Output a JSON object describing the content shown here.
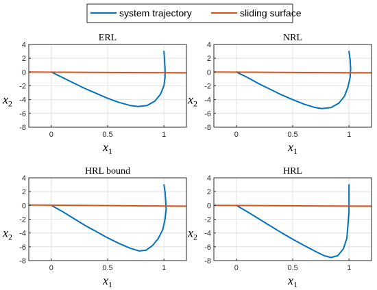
{
  "legend": {
    "placement": "top-center",
    "entries": [
      {
        "label": "system trajectory",
        "color": "#0072BD"
      },
      {
        "label": "sliding surface",
        "color": "#D95319"
      }
    ]
  },
  "chart_data": [
    {
      "type": "line",
      "title": "ERL",
      "xlabel": "x",
      "xlabel_sub": "1",
      "ylabel": "x",
      "ylabel_sub": "2",
      "xlim": [
        -0.2,
        1.2
      ],
      "ylim": [
        -8,
        4
      ],
      "xticks": [
        0,
        0.5,
        1
      ],
      "yticks": [
        -8,
        -6,
        -4,
        -2,
        0,
        2,
        4
      ],
      "xtick_labels": [
        "0",
        "0.5",
        "1"
      ],
      "ytick_labels": [
        "-8",
        "-6",
        "-4",
        "-2",
        "0",
        "2",
        "4"
      ],
      "grid": true,
      "series": [
        {
          "name": "system trajectory",
          "color": "#0072BD",
          "x": [
            0,
            0.1,
            0.2,
            0.3,
            0.4,
            0.5,
            0.6,
            0.7,
            0.77,
            0.85,
            0.92,
            0.97,
            1.0,
            1.01,
            1.01,
            1.005,
            1.0
          ],
          "y": [
            0,
            -0.8,
            -1.6,
            -2.4,
            -3.1,
            -3.8,
            -4.4,
            -4.85,
            -5.0,
            -4.85,
            -4.2,
            -3.2,
            -2.0,
            -0.8,
            0.5,
            1.8,
            3.0
          ]
        },
        {
          "name": "sliding surface",
          "color": "#D95319",
          "x": [
            -0.2,
            1.2
          ],
          "y": [
            0.0,
            -0.12
          ]
        }
      ]
    },
    {
      "type": "line",
      "title": "NRL",
      "xlabel": "x",
      "xlabel_sub": "1",
      "ylabel": "x",
      "ylabel_sub": "2",
      "xlim": [
        -0.2,
        1.2
      ],
      "ylim": [
        -8,
        4
      ],
      "xticks": [
        0,
        0.5,
        1
      ],
      "yticks": [
        -8,
        -6,
        -4,
        -2,
        0,
        2,
        4
      ],
      "xtick_labels": [
        "0",
        "0.5",
        "1"
      ],
      "ytick_labels": [
        "-8",
        "-6",
        "-4",
        "-2",
        "0",
        "2",
        "4"
      ],
      "grid": true,
      "series": [
        {
          "name": "system trajectory",
          "color": "#0072BD",
          "x": [
            0,
            0.1,
            0.2,
            0.3,
            0.4,
            0.5,
            0.6,
            0.7,
            0.76,
            0.84,
            0.91,
            0.96,
            0.99,
            1.01,
            1.015,
            1.01,
            1.0
          ],
          "y": [
            0,
            -0.8,
            -1.7,
            -2.5,
            -3.3,
            -4.0,
            -4.65,
            -5.15,
            -5.3,
            -5.15,
            -4.5,
            -3.5,
            -2.2,
            -0.8,
            0.5,
            1.8,
            3.0
          ]
        },
        {
          "name": "sliding surface",
          "color": "#D95319",
          "x": [
            -0.2,
            1.2
          ],
          "y": [
            0.0,
            -0.12
          ]
        }
      ]
    },
    {
      "type": "line",
      "title": "HRL bound",
      "xlabel": "x",
      "xlabel_sub": "1",
      "ylabel": "x",
      "ylabel_sub": "2",
      "xlim": [
        -0.2,
        1.2
      ],
      "ylim": [
        -8,
        4
      ],
      "xticks": [
        0,
        0.5,
        1
      ],
      "yticks": [
        -8,
        -6,
        -4,
        -2,
        0,
        2,
        4
      ],
      "xtick_labels": [
        "0",
        "0.5",
        "1"
      ],
      "ytick_labels": [
        "-8",
        "-6",
        "-4",
        "-2",
        "0",
        "2",
        "4"
      ],
      "grid": true,
      "series": [
        {
          "name": "system trajectory",
          "color": "#0072BD",
          "x": [
            0,
            0.1,
            0.2,
            0.3,
            0.4,
            0.5,
            0.6,
            0.7,
            0.78,
            0.84,
            0.9,
            0.95,
            0.99,
            1.01,
            1.02,
            1.015,
            1.01,
            1.0
          ],
          "y": [
            0,
            -0.9,
            -1.9,
            -2.9,
            -3.8,
            -4.7,
            -5.5,
            -6.2,
            -6.6,
            -6.5,
            -5.8,
            -4.8,
            -3.5,
            -2.0,
            -0.5,
            0.8,
            2.0,
            3.0
          ]
        },
        {
          "name": "sliding surface",
          "color": "#D95319",
          "x": [
            -0.2,
            1.2
          ],
          "y": [
            0.05,
            -0.12
          ]
        }
      ]
    },
    {
      "type": "line",
      "title": "HRL",
      "xlabel": "x",
      "xlabel_sub": "1",
      "ylabel": "x",
      "ylabel_sub": "2",
      "xlim": [
        -0.2,
        1.2
      ],
      "ylim": [
        -8,
        4
      ],
      "xticks": [
        0,
        0.5,
        1
      ],
      "yticks": [
        -8,
        -6,
        -4,
        -2,
        0,
        2,
        4
      ],
      "xtick_labels": [
        "0",
        "0.5",
        "1"
      ],
      "ytick_labels": [
        "-8",
        "-6",
        "-4",
        "-2",
        "0",
        "2",
        "4"
      ],
      "grid": true,
      "series": [
        {
          "name": "system trajectory",
          "color": "#0072BD",
          "x": [
            0,
            0.1,
            0.2,
            0.3,
            0.4,
            0.5,
            0.6,
            0.7,
            0.78,
            0.84,
            0.9,
            0.95,
            0.98,
            0.99,
            1.0,
            1.0,
            1.0
          ],
          "y": [
            0,
            -0.95,
            -1.95,
            -2.95,
            -3.95,
            -4.9,
            -5.8,
            -6.65,
            -7.3,
            -7.55,
            -7.3,
            -6.3,
            -4.8,
            -3.0,
            -1.0,
            1.0,
            3.0
          ]
        },
        {
          "name": "sliding surface",
          "color": "#D95319",
          "x": [
            -0.2,
            1.2
          ],
          "y": [
            0.0,
            -0.12
          ]
        }
      ]
    }
  ]
}
